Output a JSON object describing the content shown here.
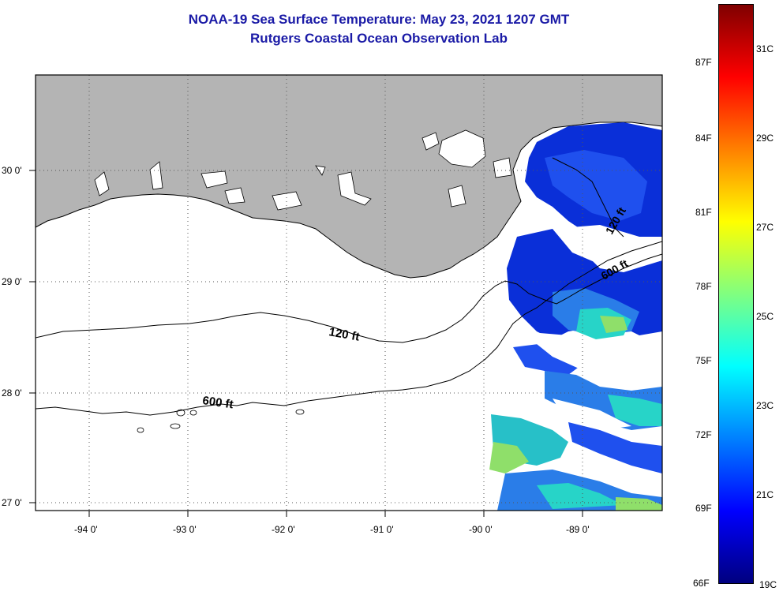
{
  "title": {
    "line1": "NOAA-19 Sea Surface Temperature:  May 23, 2021 1207 GMT",
    "line2": "Rutgers Coastal Ocean Observation Lab"
  },
  "colors": {
    "title": "#1a1aa6",
    "land": "#b4b4b4",
    "water_background": "#ffffff",
    "contour": "#000000"
  },
  "axes": {
    "longitude_labels": [
      "-94 0'",
      "-93 0'",
      "-92 0'",
      "-91 0'",
      "-90 0'",
      "-89 0'"
    ],
    "latitude_labels": [
      "30 0'",
      "29 0'",
      "28 0'",
      "27 0'"
    ],
    "grid": "dotted"
  },
  "contours": [
    {
      "label": "120 ft"
    },
    {
      "label": "600 ft"
    },
    {
      "label": "600 ft"
    },
    {
      "label": "120 ft"
    }
  ],
  "colorbar": {
    "fahrenheit_labels": [
      "87F",
      "84F",
      "81F",
      "78F",
      "75F",
      "72F",
      "69F",
      "66F"
    ],
    "celsius_labels": [
      "31C",
      "29C",
      "27C",
      "25C",
      "23C",
      "21C",
      "19C"
    ],
    "stops": [
      "#7f0000",
      "#ff0000",
      "#ff8000",
      "#ffff00",
      "#80ff80",
      "#00ffff",
      "#0080ff",
      "#0000ff",
      "#00007f"
    ]
  }
}
